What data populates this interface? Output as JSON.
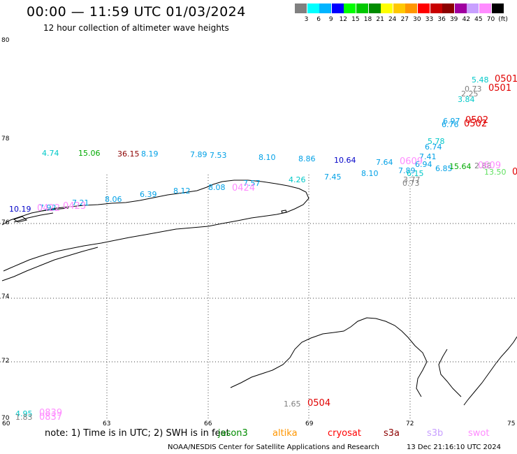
{
  "header": {
    "title": "00:00 — 11:59 UTC 01/03/2024",
    "subtitle": "12 hour collection of altimeter wave heights"
  },
  "colorbar": {
    "colors": [
      "#808080",
      "#00ffff",
      "#00b4ff",
      "#0000ff",
      "#00ff00",
      "#00c800",
      "#008c00",
      "#ffff00",
      "#ffc800",
      "#ff9600",
      "#ff0000",
      "#c80000",
      "#8c0000",
      "#a000a0",
      "#c8a0ff",
      "#ff8cff",
      "#000000"
    ],
    "labels": [
      "3",
      "6",
      "9",
      "12",
      "15",
      "18",
      "21",
      "24",
      "27",
      "30",
      "33",
      "36",
      "39",
      "42",
      "45",
      "70",
      "(ft)"
    ]
  },
  "axes": {
    "lat_labels": [
      "80",
      "78",
      "76",
      "74",
      "72",
      "70"
    ],
    "lon_labels": [
      "60",
      "63",
      "66",
      "69",
      "72",
      "75"
    ]
  },
  "observations": [
    {
      "text": "5.48",
      "color": "#00c8c8"
    },
    {
      "text": "0.73",
      "color": "#808080"
    },
    {
      "text": "2.25",
      "color": "#808080"
    },
    {
      "text": "3.84",
      "color": "#00c8c8"
    },
    {
      "text": "6.97",
      "color": "#00a0e6"
    },
    {
      "text": "6.76",
      "color": "#00a0e6"
    },
    {
      "text": "5.78",
      "color": "#00c8c8"
    },
    {
      "text": "6.74",
      "color": "#00a0e6"
    },
    {
      "text": "7.41",
      "color": "#00a0e6"
    },
    {
      "text": "6.94",
      "color": "#00a0e6"
    },
    {
      "text": "6.85",
      "color": "#00a0e6"
    },
    {
      "text": "15.64",
      "color": "#00aa00"
    },
    {
      "text": "2.88",
      "color": "#808080"
    },
    {
      "text": "13.50",
      "color": "#60e060"
    },
    {
      "text": "4.74",
      "color": "#00c8c8"
    },
    {
      "text": "15.06",
      "color": "#00aa00"
    },
    {
      "text": "36.15",
      "color": "#8c0000"
    },
    {
      "text": "8.19",
      "color": "#00a0e6"
    },
    {
      "text": "7.89",
      "color": "#00a0e6"
    },
    {
      "text": "7.53",
      "color": "#00a0e6"
    },
    {
      "text": "8.10",
      "color": "#00a0e6"
    },
    {
      "text": "8.86",
      "color": "#00a0e6"
    },
    {
      "text": "10.64",
      "color": "#0000c8"
    },
    {
      "text": "7.64",
      "color": "#00a0e6"
    },
    {
      "text": "7.45",
      "color": "#00a0e6"
    },
    {
      "text": "8.10",
      "color": "#00a0e6"
    },
    {
      "text": "7.89",
      "color": "#00a0e6"
    },
    {
      "text": "6.15",
      "color": "#00c8c8"
    },
    {
      "text": "3.77",
      "color": "#808080"
    },
    {
      "text": "0.73",
      "color": "#808080"
    },
    {
      "text": "4.26",
      "color": "#00c8c8"
    },
    {
      "text": "8.08",
      "color": "#00a0e6"
    },
    {
      "text": "7.57",
      "color": "#00a0e6"
    },
    {
      "text": "8.12",
      "color": "#00a0e6"
    },
    {
      "text": "6.39",
      "color": "#00a0e6"
    },
    {
      "text": "8.06",
      "color": "#00a0e6"
    },
    {
      "text": "7.21",
      "color": "#00a0e6"
    },
    {
      "text": "7.92",
      "color": "#00a0e6"
    },
    {
      "text": "10.19",
      "color": "#0000c8"
    },
    {
      "text": "4.95",
      "color": "#00c8c8"
    },
    {
      "text": "1.83",
      "color": "#808080"
    },
    {
      "text": "1.65",
      "color": "#808080"
    }
  ],
  "passes": [
    {
      "text": "0501",
      "color": "#e00000"
    },
    {
      "text": "0501",
      "color": "#e00000"
    },
    {
      "text": "0502",
      "color": "#e00000"
    },
    {
      "text": "0502",
      "color": "#e00000"
    },
    {
      "text": "0609",
      "color": "#ff8cff"
    },
    {
      "text": "0609",
      "color": "#ff8cff"
    },
    {
      "text": "0",
      "color": "#e00000"
    },
    {
      "text": "0424",
      "color": "#ff8cff"
    },
    {
      "text": "0423",
      "color": "#ff8cff"
    },
    {
      "text": "0422",
      "color": "#ff8cff"
    },
    {
      "text": "0839",
      "color": "#ff8cff"
    },
    {
      "text": "0837",
      "color": "#ff8cff"
    },
    {
      "text": "0504",
      "color": "#e00000"
    }
  ],
  "footer": {
    "note": "note: 1) Time is in UTC; 2) SWH is in feet",
    "satellites": [
      {
        "name": "jason3",
        "color": "#008c00"
      },
      {
        "name": "altika",
        "color": "#ff9600"
      },
      {
        "name": "cryosat",
        "color": "#ff0000"
      },
      {
        "name": "s3a",
        "color": "#8c0000"
      },
      {
        "name": "s3b",
        "color": "#c8a0ff"
      },
      {
        "name": "swot",
        "color": "#ff8cff"
      }
    ],
    "credit": "NOAA/NESDIS Center for Satellite Applications and Research",
    "timestamp": "13 Dec 21:16:10 UTC 2024"
  }
}
